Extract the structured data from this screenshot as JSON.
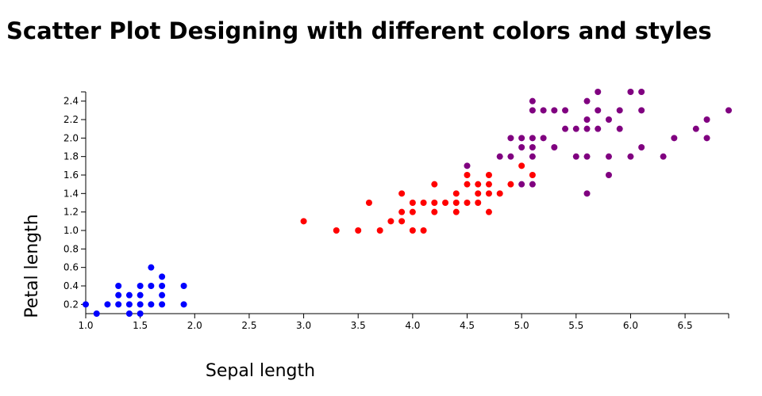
{
  "chart_data": {
    "type": "scatter",
    "title": "Scatter Plot Designing with different colors and styles",
    "xlabel": "Sepal length",
    "ylabel": "Petal length",
    "xlim": [
      1.0,
      6.9
    ],
    "ylim": [
      0.1,
      2.5
    ],
    "x_ticks": [
      "1.0",
      "1.5",
      "2.0",
      "2.5",
      "3.0",
      "3.5",
      "4.0",
      "4.5",
      "5.0",
      "5.5",
      "6.0",
      "6.5"
    ],
    "y_ticks": [
      "0.2",
      "0.4",
      "0.6",
      "0.8",
      "1.0",
      "1.2",
      "1.4",
      "1.6",
      "1.8",
      "2.0",
      "2.2",
      "2.4"
    ],
    "series": [
      {
        "color": "#0000ff",
        "points": [
          [
            1.0,
            0.2
          ],
          [
            1.1,
            0.1
          ],
          [
            1.2,
            0.2
          ],
          [
            1.3,
            0.2
          ],
          [
            1.3,
            0.3
          ],
          [
            1.3,
            0.4
          ],
          [
            1.4,
            0.1
          ],
          [
            1.4,
            0.2
          ],
          [
            1.4,
            0.3
          ],
          [
            1.5,
            0.1
          ],
          [
            1.5,
            0.2
          ],
          [
            1.5,
            0.3
          ],
          [
            1.5,
            0.4
          ],
          [
            1.6,
            0.2
          ],
          [
            1.6,
            0.4
          ],
          [
            1.6,
            0.6
          ],
          [
            1.7,
            0.2
          ],
          [
            1.7,
            0.3
          ],
          [
            1.7,
            0.4
          ],
          [
            1.7,
            0.5
          ],
          [
            1.9,
            0.2
          ],
          [
            1.9,
            0.4
          ]
        ]
      },
      {
        "color": "#ff0000",
        "points": [
          [
            3.0,
            1.1
          ],
          [
            3.3,
            1.0
          ],
          [
            3.5,
            1.0
          ],
          [
            3.6,
            1.3
          ],
          [
            3.7,
            1.0
          ],
          [
            3.8,
            1.1
          ],
          [
            3.9,
            1.1
          ],
          [
            3.9,
            1.2
          ],
          [
            3.9,
            1.4
          ],
          [
            4.0,
            1.0
          ],
          [
            4.0,
            1.2
          ],
          [
            4.0,
            1.3
          ],
          [
            4.1,
            1.0
          ],
          [
            4.1,
            1.3
          ],
          [
            4.2,
            1.2
          ],
          [
            4.2,
            1.3
          ],
          [
            4.2,
            1.5
          ],
          [
            4.3,
            1.3
          ],
          [
            4.4,
            1.2
          ],
          [
            4.4,
            1.3
          ],
          [
            4.4,
            1.4
          ],
          [
            4.5,
            1.3
          ],
          [
            4.5,
            1.5
          ],
          [
            4.5,
            1.6
          ],
          [
            4.6,
            1.3
          ],
          [
            4.6,
            1.4
          ],
          [
            4.6,
            1.5
          ],
          [
            4.7,
            1.2
          ],
          [
            4.7,
            1.4
          ],
          [
            4.7,
            1.5
          ],
          [
            4.7,
            1.6
          ],
          [
            4.8,
            1.4
          ],
          [
            4.9,
            1.5
          ],
          [
            5.0,
            1.7
          ],
          [
            5.1,
            1.6
          ]
        ]
      },
      {
        "color": "#800080",
        "points": [
          [
            4.5,
            1.7
          ],
          [
            4.8,
            1.8
          ],
          [
            4.9,
            1.8
          ],
          [
            4.9,
            2.0
          ],
          [
            5.0,
            1.5
          ],
          [
            5.0,
            1.9
          ],
          [
            5.0,
            2.0
          ],
          [
            5.1,
            1.5
          ],
          [
            5.1,
            1.8
          ],
          [
            5.1,
            1.9
          ],
          [
            5.1,
            2.0
          ],
          [
            5.1,
            2.3
          ],
          [
            5.1,
            2.4
          ],
          [
            5.2,
            2.0
          ],
          [
            5.2,
            2.3
          ],
          [
            5.3,
            1.9
          ],
          [
            5.3,
            2.3
          ],
          [
            5.4,
            2.1
          ],
          [
            5.4,
            2.3
          ],
          [
            5.5,
            1.8
          ],
          [
            5.5,
            2.1
          ],
          [
            5.6,
            1.4
          ],
          [
            5.6,
            1.8
          ],
          [
            5.6,
            2.1
          ],
          [
            5.6,
            2.2
          ],
          [
            5.6,
            2.4
          ],
          [
            5.7,
            2.1
          ],
          [
            5.7,
            2.3
          ],
          [
            5.7,
            2.5
          ],
          [
            5.8,
            1.6
          ],
          [
            5.8,
            1.8
          ],
          [
            5.8,
            2.2
          ],
          [
            5.9,
            2.1
          ],
          [
            5.9,
            2.3
          ],
          [
            6.0,
            1.8
          ],
          [
            6.0,
            2.5
          ],
          [
            6.1,
            1.9
          ],
          [
            6.1,
            2.3
          ],
          [
            6.1,
            2.5
          ],
          [
            6.3,
            1.8
          ],
          [
            6.4,
            2.0
          ],
          [
            6.6,
            2.1
          ],
          [
            6.7,
            2.0
          ],
          [
            6.7,
            2.2
          ],
          [
            6.9,
            2.3
          ]
        ]
      }
    ]
  }
}
